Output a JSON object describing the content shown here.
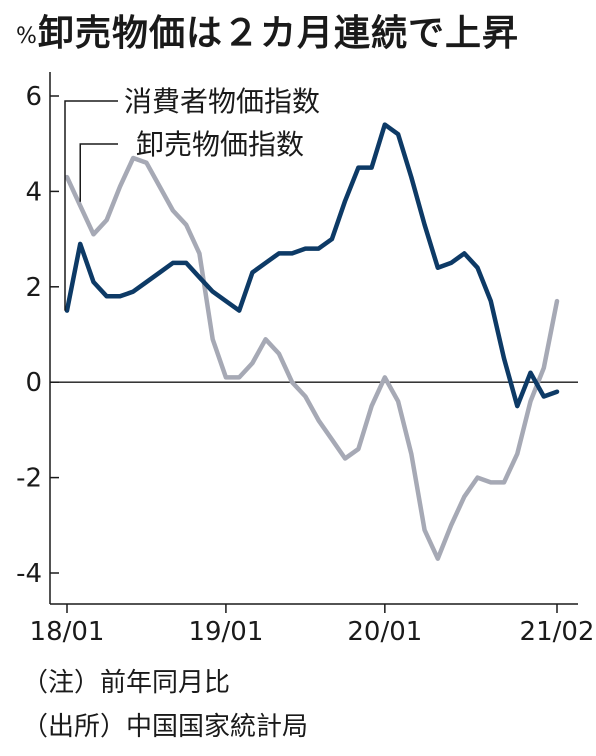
{
  "title": "卸売物価は２カ月連続で上昇",
  "unit": "%",
  "notes": {
    "note": "（注）前年同月比",
    "source": "（出所）中国国家統計局"
  },
  "chart_data": {
    "type": "line",
    "title": "卸売物価は２カ月連続で上昇",
    "ylabel": "%",
    "ylim": [
      -4.6,
      6.5
    ],
    "yticks": [
      6,
      4,
      2,
      0,
      -2,
      -4
    ],
    "ytick_labels": [
      "6",
      "4",
      "2",
      "0",
      "-2",
      "-4"
    ],
    "xlim": [
      0,
      37
    ],
    "xticks": [
      0,
      12,
      24,
      37
    ],
    "xtick_labels": [
      "18/01",
      "19/01",
      "20/01",
      "21/02"
    ],
    "x_start": "18/01",
    "x_end": "21/02",
    "legend_placement": "top-left",
    "series": [
      {
        "name": "消費者物価指数",
        "color": "#0d3a66",
        "values": [
          1.5,
          2.9,
          2.1,
          1.8,
          1.8,
          1.9,
          2.1,
          2.3,
          2.5,
          2.5,
          2.2,
          1.9,
          1.7,
          1.5,
          2.3,
          2.5,
          2.7,
          2.7,
          2.8,
          2.8,
          3.0,
          3.8,
          4.5,
          4.5,
          5.4,
          5.2,
          4.3,
          3.3,
          2.4,
          2.5,
          2.7,
          2.4,
          1.7,
          0.5,
          -0.5,
          0.2,
          -0.3,
          -0.2
        ]
      },
      {
        "name": "卸売物価指数",
        "color": "#a6a9b5",
        "values": [
          4.3,
          3.7,
          3.1,
          3.4,
          4.1,
          4.7,
          4.6,
          4.1,
          3.6,
          3.3,
          2.7,
          0.9,
          0.1,
          0.1,
          0.4,
          0.9,
          0.6,
          0.0,
          -0.3,
          -0.8,
          -1.2,
          -1.6,
          -1.4,
          -0.5,
          0.1,
          -0.4,
          -1.5,
          -3.1,
          -3.7,
          -3.0,
          -2.4,
          -2.0,
          -2.1,
          -2.1,
          -1.5,
          -0.4,
          0.3,
          1.7
        ]
      }
    ],
    "zero_line": true,
    "grid": false
  }
}
